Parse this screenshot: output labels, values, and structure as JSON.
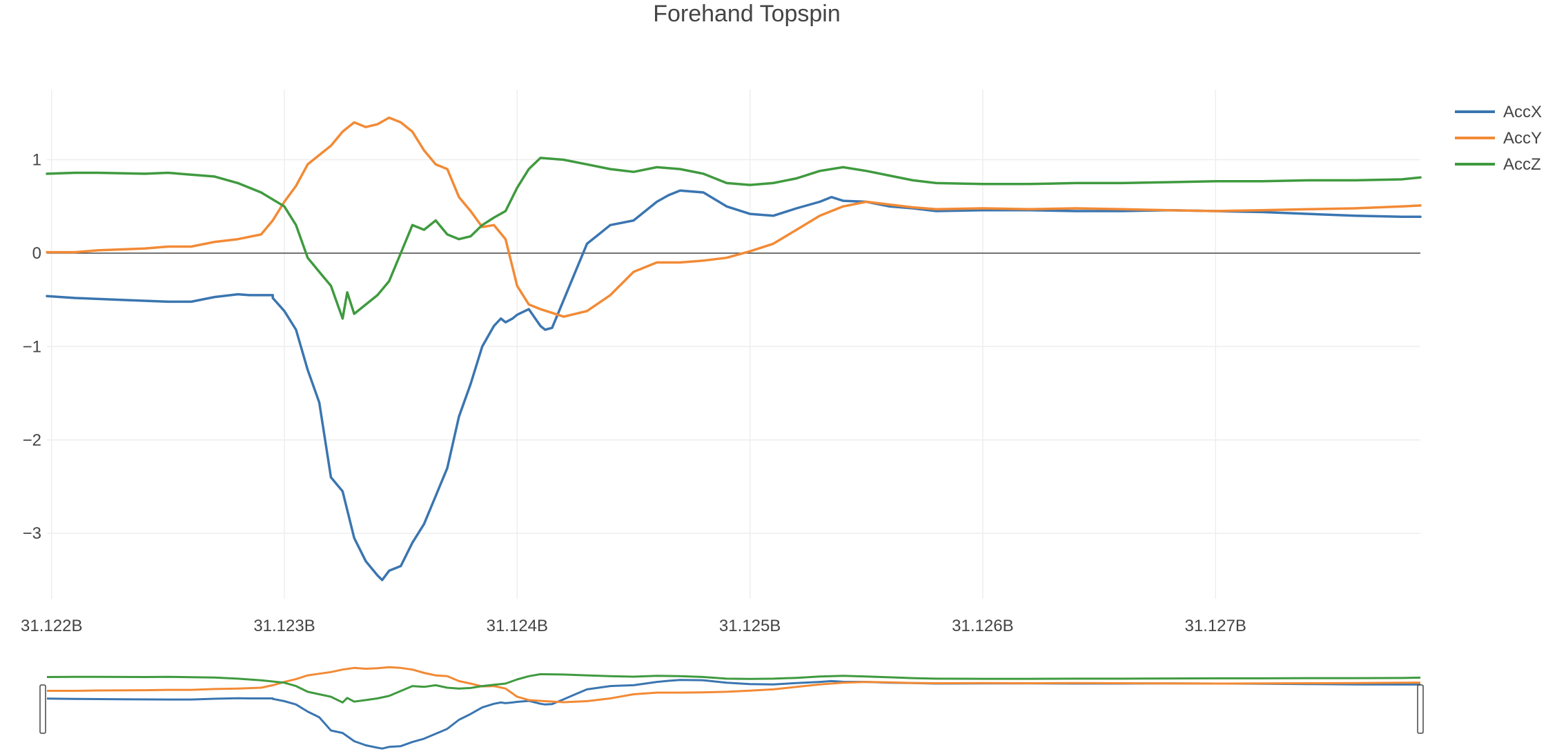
{
  "chart_data": {
    "type": "line",
    "title": "Forehand Topspin",
    "xlabel": "",
    "ylabel": "",
    "xlim": [
      31.12198,
      31.12788
    ],
    "ylim": [
      -3.7,
      1.75
    ],
    "x_ticks": [
      {
        "value": 31.122,
        "label": "31.122B"
      },
      {
        "value": 31.123,
        "label": "31.123B"
      },
      {
        "value": 31.124,
        "label": "31.124B"
      },
      {
        "value": 31.125,
        "label": "31.125B"
      },
      {
        "value": 31.126,
        "label": "31.126B"
      },
      {
        "value": 31.127,
        "label": "31.127B"
      }
    ],
    "y_ticks": [
      {
        "value": 1,
        "label": "1"
      },
      {
        "value": 0,
        "label": "0"
      },
      {
        "value": -1,
        "label": "−1"
      },
      {
        "value": -2,
        "label": "−2"
      },
      {
        "value": -3,
        "label": "−3"
      }
    ],
    "grid": true,
    "legend": "top-right",
    "range_slider": true,
    "series": [
      {
        "name": "AccX",
        "color": "#3a75b0",
        "points": [
          [
            31.12198,
            -0.46
          ],
          [
            31.1221,
            -0.48
          ],
          [
            31.1223,
            -0.5
          ],
          [
            31.1225,
            -0.52
          ],
          [
            31.1226,
            -0.52
          ],
          [
            31.1227,
            -0.47
          ],
          [
            31.1228,
            -0.44
          ],
          [
            31.1229,
            -0.45
          ],
          [
            31.12295,
            -0.45
          ],
          [
            31.12285,
            -0.45
          ],
          [
            31.1229,
            -0.45
          ],
          [
            31.12295,
            -0.48
          ],
          [
            31.123,
            -0.62
          ],
          [
            31.12305,
            -0.82
          ],
          [
            31.1231,
            -1.25
          ],
          [
            31.12315,
            -1.6
          ],
          [
            31.1232,
            -2.4
          ],
          [
            31.12325,
            -2.55
          ],
          [
            31.1233,
            -3.05
          ],
          [
            31.12335,
            -3.3
          ],
          [
            31.1234,
            -3.45
          ],
          [
            31.12342,
            -3.5
          ],
          [
            31.12345,
            -3.4
          ],
          [
            31.1235,
            -3.35
          ],
          [
            31.12355,
            -3.1
          ],
          [
            31.1236,
            -2.9
          ],
          [
            31.12365,
            -2.6
          ],
          [
            31.1237,
            -2.3
          ],
          [
            31.12375,
            -1.75
          ],
          [
            31.1238,
            -1.4
          ],
          [
            31.12385,
            -1.0
          ],
          [
            31.1239,
            -0.78
          ],
          [
            31.12393,
            -0.7
          ],
          [
            31.12395,
            -0.74
          ],
          [
            31.12398,
            -0.7
          ],
          [
            31.124,
            -0.66
          ],
          [
            31.12405,
            -0.6
          ],
          [
            31.1241,
            -0.78
          ],
          [
            31.12412,
            -0.82
          ],
          [
            31.12415,
            -0.8
          ],
          [
            31.1242,
            -0.5
          ],
          [
            31.12425,
            -0.2
          ],
          [
            31.1243,
            0.1
          ],
          [
            31.12435,
            0.2
          ],
          [
            31.1244,
            0.3
          ],
          [
            31.1245,
            0.35
          ],
          [
            31.1246,
            0.55
          ],
          [
            31.12465,
            0.62
          ],
          [
            31.1247,
            0.67
          ],
          [
            31.1248,
            0.65
          ],
          [
            31.1249,
            0.5
          ],
          [
            31.125,
            0.42
          ],
          [
            31.1251,
            0.4
          ],
          [
            31.1252,
            0.48
          ],
          [
            31.1253,
            0.55
          ],
          [
            31.12535,
            0.6
          ],
          [
            31.1254,
            0.56
          ],
          [
            31.1255,
            0.55
          ],
          [
            31.1256,
            0.5
          ],
          [
            31.1257,
            0.48
          ],
          [
            31.1258,
            0.45
          ],
          [
            31.126,
            0.46
          ],
          [
            31.1262,
            0.46
          ],
          [
            31.1264,
            0.45
          ],
          [
            31.1266,
            0.45
          ],
          [
            31.1268,
            0.46
          ],
          [
            31.127,
            0.45
          ],
          [
            31.1272,
            0.44
          ],
          [
            31.1274,
            0.42
          ],
          [
            31.1276,
            0.4
          ],
          [
            31.1278,
            0.39
          ],
          [
            31.12788,
            0.39
          ]
        ]
      },
      {
        "name": "AccY",
        "color": "#f28a35",
        "points": [
          [
            31.12198,
            0.01
          ],
          [
            31.1221,
            0.01
          ],
          [
            31.1222,
            0.03
          ],
          [
            31.1224,
            0.05
          ],
          [
            31.1225,
            0.07
          ],
          [
            31.1226,
            0.07
          ],
          [
            31.1227,
            0.12
          ],
          [
            31.1228,
            0.15
          ],
          [
            31.1229,
            0.2
          ],
          [
            31.12295,
            0.35
          ],
          [
            31.123,
            0.55
          ],
          [
            31.12305,
            0.72
          ],
          [
            31.1231,
            0.95
          ],
          [
            31.12315,
            1.05
          ],
          [
            31.1232,
            1.15
          ],
          [
            31.12325,
            1.3
          ],
          [
            31.1233,
            1.4
          ],
          [
            31.12335,
            1.35
          ],
          [
            31.1234,
            1.38
          ],
          [
            31.12345,
            1.45
          ],
          [
            31.1235,
            1.4
          ],
          [
            31.12355,
            1.3
          ],
          [
            31.1236,
            1.1
          ],
          [
            31.12365,
            0.95
          ],
          [
            31.1237,
            0.9
          ],
          [
            31.12375,
            0.6
          ],
          [
            31.1238,
            0.45
          ],
          [
            31.12385,
            0.28
          ],
          [
            31.1239,
            0.3
          ],
          [
            31.12395,
            0.15
          ],
          [
            31.124,
            -0.35
          ],
          [
            31.12405,
            -0.55
          ],
          [
            31.1241,
            -0.6
          ],
          [
            31.1242,
            -0.68
          ],
          [
            31.1243,
            -0.62
          ],
          [
            31.1244,
            -0.45
          ],
          [
            31.1245,
            -0.2
          ],
          [
            31.1246,
            -0.1
          ],
          [
            31.1247,
            -0.1
          ],
          [
            31.1248,
            -0.08
          ],
          [
            31.1249,
            -0.05
          ],
          [
            31.125,
            0.02
          ],
          [
            31.1251,
            0.1
          ],
          [
            31.1252,
            0.25
          ],
          [
            31.1253,
            0.4
          ],
          [
            31.1254,
            0.5
          ],
          [
            31.1255,
            0.55
          ],
          [
            31.1256,
            0.52
          ],
          [
            31.1257,
            0.49
          ],
          [
            31.1258,
            0.47
          ],
          [
            31.126,
            0.48
          ],
          [
            31.1262,
            0.47
          ],
          [
            31.1264,
            0.48
          ],
          [
            31.1266,
            0.47
          ],
          [
            31.1268,
            0.46
          ],
          [
            31.127,
            0.45
          ],
          [
            31.1272,
            0.46
          ],
          [
            31.1274,
            0.47
          ],
          [
            31.1276,
            0.48
          ],
          [
            31.1278,
            0.5
          ],
          [
            31.12788,
            0.51
          ]
        ]
      },
      {
        "name": "AccZ",
        "color": "#3f9a3f",
        "points": [
          [
            31.12198,
            0.85
          ],
          [
            31.1221,
            0.86
          ],
          [
            31.1222,
            0.86
          ],
          [
            31.1224,
            0.85
          ],
          [
            31.1225,
            0.86
          ],
          [
            31.1226,
            0.84
          ],
          [
            31.1227,
            0.82
          ],
          [
            31.1228,
            0.75
          ],
          [
            31.1229,
            0.65
          ],
          [
            31.123,
            0.5
          ],
          [
            31.12305,
            0.3
          ],
          [
            31.1231,
            -0.05
          ],
          [
            31.12315,
            -0.2
          ],
          [
            31.1232,
            -0.35
          ],
          [
            31.12325,
            -0.7
          ],
          [
            31.12327,
            -0.42
          ],
          [
            31.1233,
            -0.65
          ],
          [
            31.12335,
            -0.55
          ],
          [
            31.1234,
            -0.45
          ],
          [
            31.12345,
            -0.3
          ],
          [
            31.1235,
            0.0
          ],
          [
            31.12355,
            0.3
          ],
          [
            31.1236,
            0.25
          ],
          [
            31.12365,
            0.35
          ],
          [
            31.1237,
            0.2
          ],
          [
            31.12375,
            0.15
          ],
          [
            31.1238,
            0.18
          ],
          [
            31.12385,
            0.3
          ],
          [
            31.1239,
            0.38
          ],
          [
            31.12395,
            0.45
          ],
          [
            31.124,
            0.7
          ],
          [
            31.12405,
            0.9
          ],
          [
            31.1241,
            1.02
          ],
          [
            31.1242,
            1.0
          ],
          [
            31.1243,
            0.95
          ],
          [
            31.1244,
            0.9
          ],
          [
            31.1245,
            0.87
          ],
          [
            31.1246,
            0.92
          ],
          [
            31.1247,
            0.9
          ],
          [
            31.1248,
            0.85
          ],
          [
            31.1249,
            0.75
          ],
          [
            31.125,
            0.73
          ],
          [
            31.1251,
            0.75
          ],
          [
            31.1252,
            0.8
          ],
          [
            31.1253,
            0.88
          ],
          [
            31.1254,
            0.92
          ],
          [
            31.1255,
            0.88
          ],
          [
            31.1256,
            0.83
          ],
          [
            31.1257,
            0.78
          ],
          [
            31.1258,
            0.75
          ],
          [
            31.126,
            0.74
          ],
          [
            31.1262,
            0.74
          ],
          [
            31.1264,
            0.75
          ],
          [
            31.1266,
            0.75
          ],
          [
            31.1268,
            0.76
          ],
          [
            31.127,
            0.77
          ],
          [
            31.1272,
            0.77
          ],
          [
            31.1274,
            0.78
          ],
          [
            31.1276,
            0.78
          ],
          [
            31.1278,
            0.79
          ],
          [
            31.12788,
            0.81
          ]
        ]
      }
    ]
  }
}
